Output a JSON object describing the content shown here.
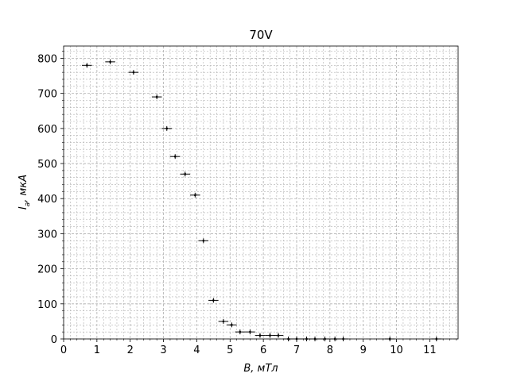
{
  "chart_data": {
    "type": "scatter",
    "title": "70V",
    "xlabel_main": "B",
    "xlabel_rest": ", мТл",
    "ylabel_main": "I",
    "ylabel_sub": "a",
    "ylabel_rest": ", мкА",
    "xlim": [
      0,
      11.85
    ],
    "ylim": [
      0,
      835
    ],
    "x_ticks": [
      0,
      1,
      2,
      3,
      4,
      5,
      6,
      7,
      8,
      9,
      10,
      11
    ],
    "y_ticks": [
      0,
      100,
      200,
      300,
      400,
      500,
      600,
      700,
      800
    ],
    "x_tick_labels": [
      "0",
      "1",
      "2",
      "3",
      "4",
      "5",
      "6",
      "7",
      "8",
      "9",
      "10",
      "11"
    ],
    "y_tick_labels": [
      "0",
      "100",
      "200",
      "300",
      "400",
      "500",
      "600",
      "700",
      "800"
    ],
    "x_minor_step": 0.2,
    "y_minor_step": 20,
    "grid": true,
    "marker_color": "#000000",
    "x_error": 0.15,
    "points": [
      {
        "x": 0.7,
        "y": 780
      },
      {
        "x": 1.4,
        "y": 790
      },
      {
        "x": 2.1,
        "y": 760
      },
      {
        "x": 2.8,
        "y": 690
      },
      {
        "x": 3.1,
        "y": 600
      },
      {
        "x": 3.35,
        "y": 520
      },
      {
        "x": 3.65,
        "y": 470
      },
      {
        "x": 3.95,
        "y": 410
      },
      {
        "x": 4.2,
        "y": 280
      },
      {
        "x": 4.5,
        "y": 110
      },
      {
        "x": 4.8,
        "y": 50
      },
      {
        "x": 5.05,
        "y": 40
      },
      {
        "x": 5.3,
        "y": 20
      },
      {
        "x": 5.6,
        "y": 20
      },
      {
        "x": 5.9,
        "y": 10
      },
      {
        "x": 6.2,
        "y": 10
      },
      {
        "x": 6.45,
        "y": 10
      },
      {
        "x": 6.75,
        "y": 0
      },
      {
        "x": 7.0,
        "y": 0
      },
      {
        "x": 7.3,
        "y": 0
      },
      {
        "x": 7.55,
        "y": 0
      },
      {
        "x": 7.85,
        "y": 0
      },
      {
        "x": 8.15,
        "y": 0
      },
      {
        "x": 8.4,
        "y": 0
      },
      {
        "x": 9.8,
        "y": 0
      },
      {
        "x": 11.2,
        "y": 0
      }
    ]
  }
}
